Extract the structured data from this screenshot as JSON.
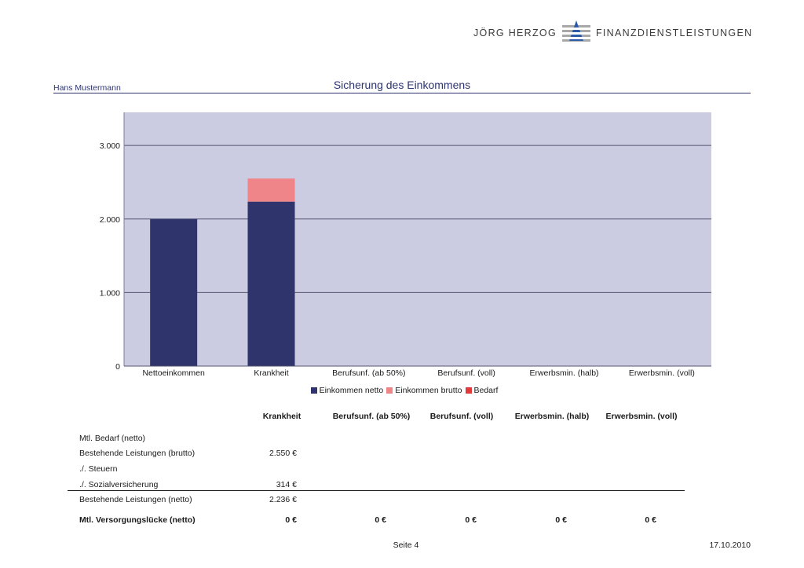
{
  "header": {
    "brand_left": "JÖRG HERZOG",
    "brand_right": "FINANZDIENSTLEISTUNGEN",
    "client_name": "Hans Mustermann",
    "title": "Sicherung des Einkommens"
  },
  "colors": {
    "plot_bg": "#cbcbe2",
    "netto": "#2f346c",
    "brutto": "#ef8589",
    "bedarf": "#e23a3a",
    "accent": "#2d3470"
  },
  "chart_data": {
    "type": "bar",
    "stacked": true,
    "categories": [
      "Nettoeinkommen",
      "Krankheit",
      "Berufsunf. (ab 50%)",
      "Berufsunf. (voll)",
      "Erwerbsmin. (halb)",
      "Erwerbsmin. (voll)"
    ],
    "series": [
      {
        "name": "Einkommen netto",
        "values": [
          2000,
          2236,
          0,
          0,
          0,
          0
        ]
      },
      {
        "name": "Einkommen brutto",
        "values": [
          0,
          314,
          0,
          0,
          0,
          0
        ]
      },
      {
        "name": "Bedarf",
        "values": [
          0,
          0,
          0,
          0,
          0,
          0
        ]
      }
    ],
    "yticks": [
      {
        "value": 0,
        "label": "0"
      },
      {
        "value": 1000,
        "label": "1.000"
      },
      {
        "value": 2000,
        "label": "2.000"
      },
      {
        "value": 3000,
        "label": "3.000"
      }
    ],
    "ylim": [
      0,
      3450
    ],
    "grid": true,
    "legend_position": "bottom"
  },
  "table": {
    "columns": [
      "Krankheit",
      "Berufsunf. (ab 50%)",
      "Berufsunf. (voll)",
      "Erwerbsmin. (halb)",
      "Erwerbsmin. (voll)"
    ],
    "rows": [
      {
        "label": "Mtl. Bedarf (netto)",
        "values": [
          "",
          "",
          "",
          "",
          ""
        ]
      },
      {
        "label": "Bestehende Leistungen (brutto)",
        "values": [
          "2.550 €",
          "",
          "",
          "",
          ""
        ]
      },
      {
        "label": "./. Steuern",
        "values": [
          "",
          "",
          "",
          "",
          ""
        ]
      },
      {
        "label": "./. Sozialversicherung",
        "values": [
          "314 €",
          "",
          "",
          "",
          ""
        ]
      },
      {
        "label": "Bestehende Leistungen (netto)",
        "values": [
          "2.236 €",
          "",
          "",
          "",
          ""
        ]
      },
      {
        "label": "Mtl. Versorgungslücke (netto)",
        "bold": true,
        "values": [
          "0 €",
          "0 €",
          "0 €",
          "0 €",
          "0 €"
        ]
      }
    ]
  },
  "footer": {
    "page": "Seite 4",
    "date": "17.10.2010"
  }
}
